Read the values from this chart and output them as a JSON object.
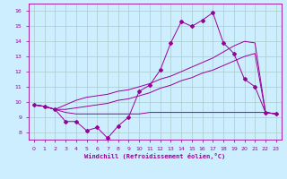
{
  "xlabel": "Windchill (Refroidissement éolien,°C)",
  "background_color": "#cceeff",
  "grid_color": "#aacccc",
  "line_color": "#990099",
  "xlim": [
    -0.5,
    23.5
  ],
  "ylim": [
    7.5,
    16.5
  ],
  "yticks": [
    8,
    9,
    10,
    11,
    12,
    13,
    14,
    15,
    16
  ],
  "xticks": [
    0,
    1,
    2,
    3,
    4,
    5,
    6,
    7,
    8,
    9,
    10,
    11,
    12,
    13,
    14,
    15,
    16,
    17,
    18,
    19,
    20,
    21,
    22,
    23
  ],
  "s1_x": [
    0,
    1,
    2,
    3,
    4,
    5,
    6,
    7,
    8,
    9,
    10,
    11,
    12,
    13,
    14,
    15,
    16,
    17,
    18,
    19,
    20,
    21,
    22,
    23
  ],
  "s1_y": [
    9.8,
    9.7,
    9.5,
    8.7,
    8.7,
    8.1,
    8.3,
    7.6,
    8.4,
    9.0,
    10.7,
    11.1,
    12.1,
    13.9,
    15.3,
    15.0,
    15.4,
    15.9,
    13.9,
    13.2,
    11.5,
    11.0,
    9.3,
    9.2
  ],
  "s2_x": [
    0,
    1,
    2,
    3,
    4,
    5,
    6,
    7,
    8,
    9,
    10,
    11,
    12,
    13,
    14,
    15,
    16,
    17,
    18,
    19,
    20,
    21,
    22,
    23
  ],
  "s2_y": [
    9.8,
    9.7,
    9.5,
    9.3,
    9.2,
    9.2,
    9.2,
    9.2,
    9.2,
    9.2,
    9.2,
    9.3,
    9.3,
    9.3,
    9.3,
    9.3,
    9.3,
    9.3,
    9.3,
    9.3,
    9.3,
    9.3,
    9.3,
    9.2
  ],
  "s3_x": [
    0,
    1,
    2,
    3,
    4,
    5,
    6,
    7,
    8,
    9,
    10,
    11,
    12,
    13,
    14,
    15,
    16,
    17,
    18,
    19,
    20,
    21,
    22,
    23
  ],
  "s3_y": [
    9.8,
    9.7,
    9.5,
    9.5,
    9.6,
    9.7,
    9.8,
    9.9,
    10.1,
    10.2,
    10.4,
    10.6,
    10.9,
    11.1,
    11.4,
    11.6,
    11.9,
    12.1,
    12.4,
    12.7,
    13.0,
    13.2,
    9.3,
    9.2
  ],
  "s4_x": [
    0,
    1,
    2,
    3,
    4,
    5,
    6,
    7,
    8,
    9,
    10,
    11,
    12,
    13,
    14,
    15,
    16,
    17,
    18,
    19,
    20,
    21,
    22,
    23
  ],
  "s4_y": [
    9.8,
    9.7,
    9.5,
    9.8,
    10.1,
    10.3,
    10.4,
    10.5,
    10.7,
    10.8,
    11.0,
    11.2,
    11.5,
    11.7,
    12.0,
    12.3,
    12.6,
    12.9,
    13.3,
    13.7,
    14.0,
    13.9,
    9.3,
    9.2
  ]
}
